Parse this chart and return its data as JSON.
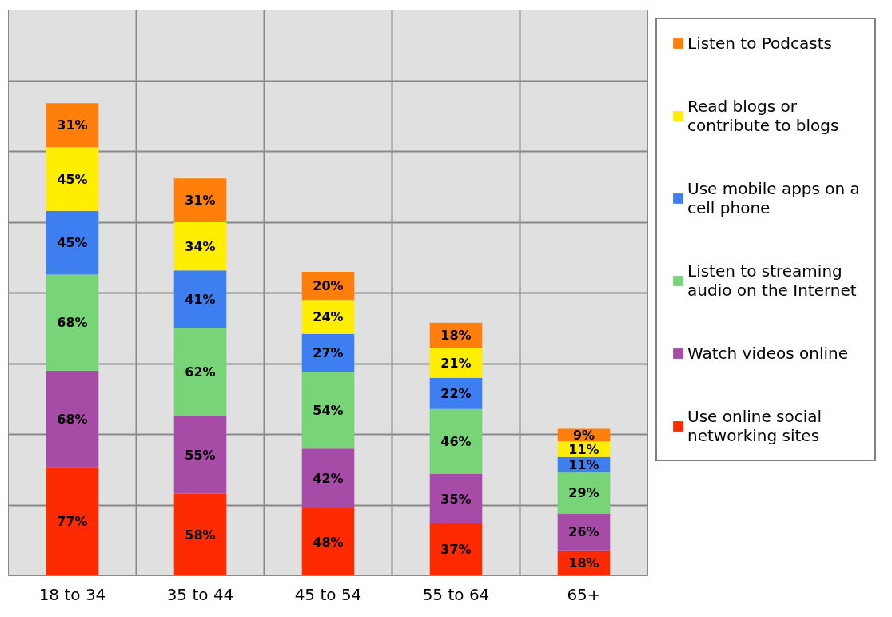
{
  "chart_data": {
    "type": "bar",
    "stacked": true,
    "categories": [
      "18 to 34",
      "35 to 44",
      "45 to 54",
      "55 to 64",
      "65+"
    ],
    "ylim": [
      0,
      400
    ],
    "yticks": [
      {
        "value": 0,
        "label": null
      },
      {
        "value": 50,
        "label": null
      },
      {
        "value": 100,
        "label": null
      },
      {
        "value": 150,
        "label": null
      },
      {
        "value": 200,
        "label": null
      },
      {
        "value": 250,
        "label": null
      },
      {
        "value": 300,
        "label": null
      },
      {
        "value": 350,
        "label": null
      },
      {
        "value": 400,
        "label": null
      }
    ],
    "tick_labels": "x",
    "grid": true,
    "legend": "right",
    "series": [
      {
        "name": "Use online social networking sites",
        "color": "#ff2a00",
        "values": [
          77,
          58,
          48,
          37,
          18
        ],
        "value_labels": [
          "77%",
          "58%",
          "48%",
          "37%",
          "18%"
        ]
      },
      {
        "name": "Watch videos online",
        "color": "#a64ca6",
        "values": [
          68,
          55,
          42,
          35,
          26
        ],
        "value_labels": [
          "68%",
          "55%",
          "42%",
          "35%",
          "26%"
        ]
      },
      {
        "name": "Listen to streaming audio on the Internet",
        "color": "#77d477",
        "values": [
          68,
          62,
          54,
          46,
          29
        ],
        "value_labels": [
          "68%",
          "62%",
          "54%",
          "46%",
          "29%"
        ]
      },
      {
        "name": "Use mobile apps on a cell phone",
        "color": "#3d7ff0",
        "values": [
          45,
          41,
          27,
          22,
          11
        ],
        "value_labels": [
          "45%",
          "41%",
          "27%",
          "22%",
          "11%"
        ]
      },
      {
        "name": "Read blogs or contribute to blogs",
        "color": "#ffee00",
        "values": [
          45,
          34,
          24,
          21,
          11
        ],
        "value_labels": [
          "45%",
          "34%",
          "24%",
          "21%",
          "11%"
        ]
      },
      {
        "name": "Listen to Podcasts",
        "color": "#ff7f0a",
        "values": [
          31,
          31,
          20,
          18,
          9
        ],
        "value_labels": [
          "31%",
          "31%",
          "20%",
          "18%",
          "9%"
        ]
      }
    ]
  }
}
